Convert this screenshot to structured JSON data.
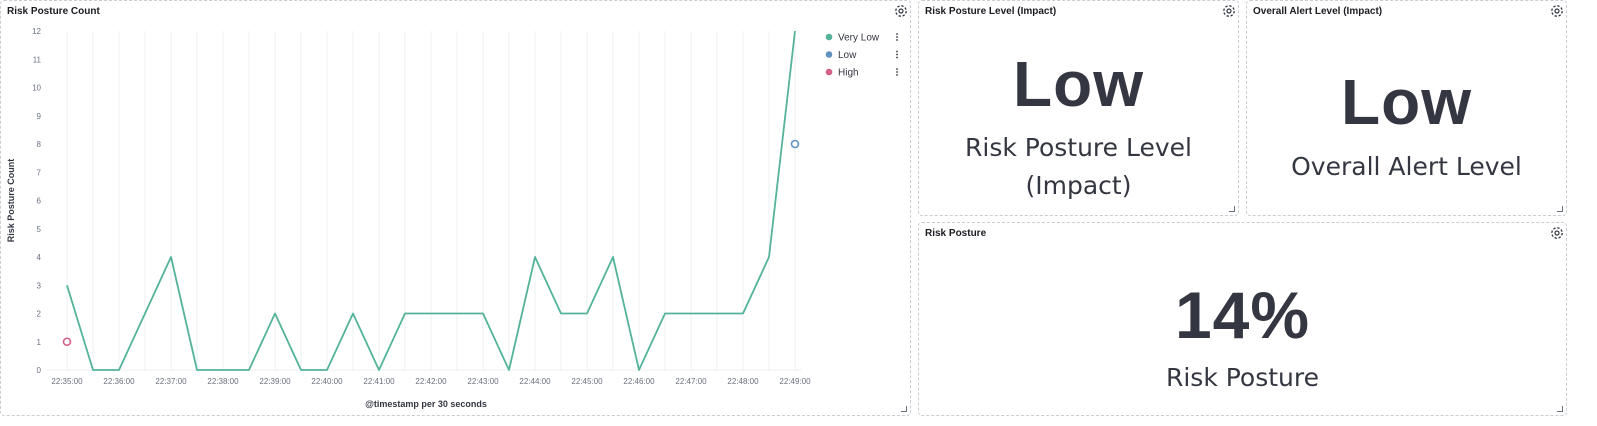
{
  "panels": {
    "risk_count": {
      "title": "Risk Posture Count"
    },
    "risk_level": {
      "title": "Risk Posture Level (Impact)",
      "value": "Low",
      "label_line1": "Risk Posture Level",
      "label_line2": "(Impact)"
    },
    "alert_level": {
      "title": "Overall Alert Level (Impact)",
      "value": "Low",
      "label": "Overall Alert Level"
    },
    "risk_posture": {
      "title": "Risk Posture",
      "value": "14%",
      "label": "Risk Posture"
    }
  },
  "icons": {
    "settings": "gear-icon",
    "legend_options": "vertical-ellipsis-icon",
    "resize": "resize-handle-icon"
  },
  "chart_data": {
    "type": "line",
    "xlabel": "@timestamp per 30 seconds",
    "ylabel": "Risk Posture Count",
    "ylim": [
      0,
      12
    ],
    "yticks": [
      0,
      1,
      2,
      3,
      4,
      5,
      6,
      7,
      8,
      9,
      10,
      11,
      12
    ],
    "xticks": [
      "22:35:00",
      "22:36:00",
      "22:37:00",
      "22:38:00",
      "22:39:00",
      "22:40:00",
      "22:41:00",
      "22:42:00",
      "22:43:00",
      "22:44:00",
      "22:45:00",
      "22:46:00",
      "22:47:00",
      "22:48:00",
      "22:49:00"
    ],
    "x_step_minutes": 0.5,
    "grid": "vertical",
    "legend_position": "top-right",
    "series": [
      {
        "name": "Very Low",
        "color": "#54b399",
        "x": [
          "22:35:00",
          "22:35:30",
          "22:36:00",
          "22:36:30",
          "22:37:00",
          "22:37:30",
          "22:38:00",
          "22:38:30",
          "22:39:00",
          "22:39:30",
          "22:40:00",
          "22:40:30",
          "22:41:00",
          "22:41:30",
          "22:42:00",
          "22:42:30",
          "22:43:00",
          "22:43:30",
          "22:44:00",
          "22:44:30",
          "22:45:00",
          "22:45:30",
          "22:46:00",
          "22:46:30",
          "22:47:00",
          "22:47:30",
          "22:48:00",
          "22:48:30",
          "22:49:00"
        ],
        "values": [
          3,
          0,
          0,
          2,
          4,
          0,
          0,
          0,
          2,
          0,
          0,
          2,
          0,
          2,
          2,
          2,
          2,
          0,
          4,
          2,
          2,
          4,
          0,
          2,
          2,
          2,
          2,
          4,
          12
        ]
      },
      {
        "name": "Low",
        "color": "#6092c0",
        "x": [
          "22:49:00"
        ],
        "values": [
          8
        ]
      },
      {
        "name": "High",
        "color": "#d36086",
        "x": [
          "22:35:00"
        ],
        "values": [
          1
        ]
      }
    ]
  }
}
